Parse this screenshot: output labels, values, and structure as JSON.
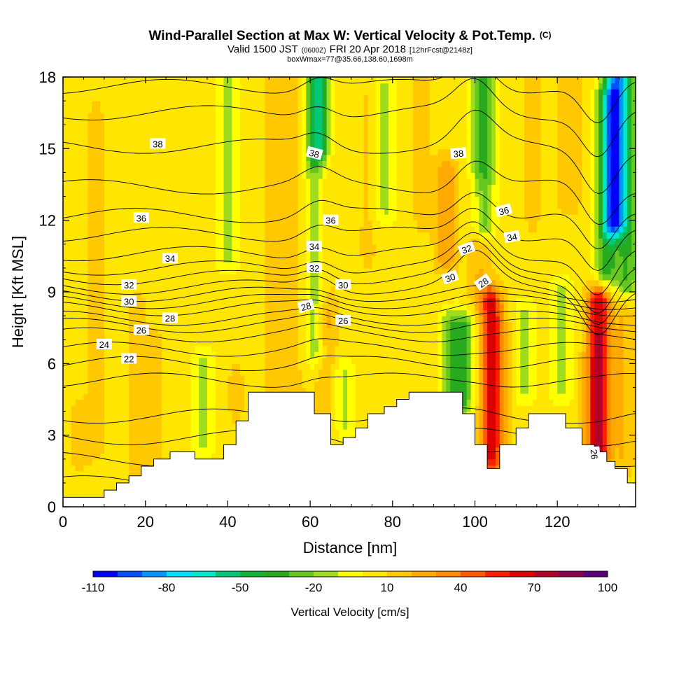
{
  "chart_data": {
    "type": "heatmap",
    "title": "Wind-Parallel Section at Max W: Vertical Velocity & Pot.Temp.",
    "title_mark": "(C)",
    "subtitle": {
      "valid": "Valid 1500 JST",
      "utc": "(0600Z)",
      "date": "FRI 20 Apr 2018",
      "fcst": "[12hrFcst@2148z]",
      "box": "boxWmax=77@35.66,138.60,1698m"
    },
    "xlabel": "Distance [nm]",
    "ylabel": "Height [Kft MSL]",
    "xlim": [
      0,
      139
    ],
    "ylim": [
      0,
      18
    ],
    "x_ticks": [
      "0",
      "20",
      "40",
      "60",
      "80",
      "100",
      "120"
    ],
    "x_tick_values": [
      0,
      20,
      40,
      60,
      80,
      100,
      120
    ],
    "y_ticks": [
      "0",
      "3",
      "6",
      "9",
      "12",
      "15",
      "18"
    ],
    "y_tick_values": [
      0,
      3,
      6,
      9,
      12,
      15,
      18
    ],
    "colorbar": {
      "label": "Vertical Velocity [cm/s]",
      "tick_labels": [
        "-110",
        "-80",
        "-50",
        "-20",
        "10",
        "40",
        "70",
        "100"
      ],
      "colors": [
        "#0000ff",
        "#0050ff",
        "#0096ff",
        "#00dcff",
        "#00e6c8",
        "#00c878",
        "#14b43c",
        "#28aa1e",
        "#64c81e",
        "#a0dc1e",
        "#ffff00",
        "#ffe600",
        "#ffc800",
        "#ffaa00",
        "#ff8c00",
        "#ff5a00",
        "#ff1e00",
        "#dc0000",
        "#b40028",
        "#8c0050",
        "#5a0078"
      ]
    },
    "colors": {
      "background": "#ffff00",
      "terrain": "#ffffff",
      "contour": "#000000"
    },
    "velocity_field": {
      "background_value": 5,
      "features": [
        {
          "x": 4,
          "ymin": 2.0,
          "ymax": 4.0,
          "value": 12
        },
        {
          "x": 8,
          "ymin": 2.5,
          "ymax": 16.5,
          "value": 12
        },
        {
          "x": 18,
          "ymin": 1.5,
          "ymax": 8.5,
          "value": 12
        },
        {
          "x": 22,
          "ymin": 1.5,
          "ymax": 7.0,
          "value": 12
        },
        {
          "x": 34,
          "ymin": 2.8,
          "ymax": 6.0,
          "value": -12
        },
        {
          "x": 40,
          "ymin": 10.5,
          "ymax": 18.0,
          "value": -12
        },
        {
          "x": 42,
          "ymin": 4.0,
          "ymax": 5.5,
          "value": 12
        },
        {
          "x": 52,
          "ymin": 5.0,
          "ymax": 18.0,
          "value": 20
        },
        {
          "x": 57,
          "ymin": 5.0,
          "ymax": 18.0,
          "value": 12
        },
        {
          "x": 61,
          "ymin": 6.5,
          "ymax": 18.0,
          "value": -18
        },
        {
          "x": 62,
          "ymin": 15.0,
          "ymax": 18.0,
          "value": -38
        },
        {
          "x": 64,
          "ymin": 8.0,
          "ymax": 14.0,
          "value": 12
        },
        {
          "x": 64,
          "ymin": 3.5,
          "ymax": 8.0,
          "value": 20
        },
        {
          "x": 68,
          "ymin": 3.5,
          "ymax": 5.5,
          "value": -12
        },
        {
          "x": 74,
          "ymin": 10.5,
          "ymax": 17.0,
          "value": 12
        },
        {
          "x": 78,
          "ymin": 12.5,
          "ymax": 17.5,
          "value": -12
        },
        {
          "x": 87,
          "ymin": 12.0,
          "ymax": 18.0,
          "value": 12
        },
        {
          "x": 94,
          "ymin": 5.0,
          "ymax": 7.5,
          "value": -20
        },
        {
          "x": 97,
          "ymin": 4.5,
          "ymax": 7.5,
          "value": -30
        },
        {
          "x": 93,
          "ymin": 10.5,
          "ymax": 14.0,
          "value": 28
        },
        {
          "x": 101,
          "ymin": 9.0,
          "ymax": 13.0,
          "value": 20
        },
        {
          "x": 102,
          "ymin": 12.0,
          "ymax": 18.0,
          "value": -35
        },
        {
          "x": 104,
          "ymin": 2.0,
          "ymax": 8.5,
          "value": 62
        },
        {
          "x": 107,
          "ymin": 3.0,
          "ymax": 7.5,
          "value": 12
        },
        {
          "x": 112,
          "ymin": 5.0,
          "ymax": 8.0,
          "value": -12
        },
        {
          "x": 114,
          "ymin": 12.0,
          "ymax": 18.0,
          "value": 12
        },
        {
          "x": 121,
          "ymin": 5.0,
          "ymax": 9.0,
          "value": -12
        },
        {
          "x": 123,
          "ymin": 13.0,
          "ymax": 18.0,
          "value": 20
        },
        {
          "x": 128,
          "ymin": 2.5,
          "ymax": 6.0,
          "value": 12
        },
        {
          "x": 130,
          "ymin": 2.5,
          "ymax": 8.5,
          "value": 72
        },
        {
          "x": 132,
          "ymin": 10.0,
          "ymax": 17.0,
          "value": -35
        },
        {
          "x": 134,
          "ymin": 12.0,
          "ymax": 18.0,
          "value": -75
        },
        {
          "x": 137,
          "ymin": 9.5,
          "ymax": 18.0,
          "value": -30
        },
        {
          "x": 136,
          "ymin": 2.0,
          "ymax": 8.0,
          "value": 20
        }
      ]
    },
    "terrain": [
      [
        0,
        0.4
      ],
      [
        10,
        0.4
      ],
      [
        10,
        0.7
      ],
      [
        13,
        0.7
      ],
      [
        13,
        1.0
      ],
      [
        16,
        1.0
      ],
      [
        16,
        1.3
      ],
      [
        19,
        1.3
      ],
      [
        19,
        1.7
      ],
      [
        22,
        1.7
      ],
      [
        22,
        2.0
      ],
      [
        26,
        2.0
      ],
      [
        26,
        2.3
      ],
      [
        32,
        2.3
      ],
      [
        32,
        2.0
      ],
      [
        39,
        2.0
      ],
      [
        39,
        2.6
      ],
      [
        42,
        2.6
      ],
      [
        42,
        3.6
      ],
      [
        45,
        3.6
      ],
      [
        45,
        4.8
      ],
      [
        61,
        4.8
      ],
      [
        61,
        3.9
      ],
      [
        65,
        3.9
      ],
      [
        65,
        2.6
      ],
      [
        68,
        2.6
      ],
      [
        68,
        2.9
      ],
      [
        71,
        2.9
      ],
      [
        71,
        3.3
      ],
      [
        74,
        3.3
      ],
      [
        74,
        3.9
      ],
      [
        78,
        3.9
      ],
      [
        78,
        4.2
      ],
      [
        81,
        4.2
      ],
      [
        81,
        4.5
      ],
      [
        84,
        4.5
      ],
      [
        84,
        4.8
      ],
      [
        97,
        4.8
      ],
      [
        97,
        3.9
      ],
      [
        100,
        3.9
      ],
      [
        100,
        2.6
      ],
      [
        103,
        2.6
      ],
      [
        103,
        1.6
      ],
      [
        106,
        1.6
      ],
      [
        106,
        2.6
      ],
      [
        110,
        2.6
      ],
      [
        110,
        3.3
      ],
      [
        113,
        3.3
      ],
      [
        113,
        3.9
      ],
      [
        122,
        3.9
      ],
      [
        122,
        3.3
      ],
      [
        126,
        3.3
      ],
      [
        126,
        2.6
      ],
      [
        129,
        2.6
      ],
      [
        129,
        2.3
      ],
      [
        132,
        2.3
      ],
      [
        132,
        1.9
      ],
      [
        134,
        1.9
      ],
      [
        134,
        1.6
      ],
      [
        137,
        1.6
      ],
      [
        137,
        1.0
      ],
      [
        139,
        1.0
      ]
    ],
    "theta_levels": [
      18,
      19,
      20,
      21,
      22,
      23,
      24,
      25,
      26,
      27,
      28,
      29,
      30,
      31,
      32,
      33,
      34,
      35,
      36,
      37,
      38,
      39,
      40
    ],
    "theta_base_heights": [
      1.0,
      2.0,
      2.9,
      3.8,
      5.3,
      6.0,
      6.6,
      7.2,
      7.6,
      7.9,
      8.3,
      8.6,
      8.9,
      9.2,
      9.6,
      10.0,
      10.6,
      11.4,
      12.2,
      13.4,
      15.1,
      16.5,
      17.6
    ],
    "contour_labels": [
      {
        "text": "38",
        "x": 23,
        "y": 15.2,
        "angle": 0
      },
      {
        "text": "38",
        "x": 61,
        "y": 14.8,
        "angle": 15
      },
      {
        "text": "38",
        "x": 96,
        "y": 14.8,
        "angle": -5
      },
      {
        "text": "36",
        "x": 19,
        "y": 12.1,
        "angle": 0
      },
      {
        "text": "36",
        "x": 65,
        "y": 12.0,
        "angle": 0
      },
      {
        "text": "36",
        "x": 107,
        "y": 12.4,
        "angle": -15
      },
      {
        "text": "34",
        "x": 26,
        "y": 10.4,
        "angle": 0
      },
      {
        "text": "34",
        "x": 61,
        "y": 10.9,
        "angle": 0
      },
      {
        "text": "34",
        "x": 109,
        "y": 11.3,
        "angle": -10
      },
      {
        "text": "32",
        "x": 16,
        "y": 9.3,
        "angle": 0
      },
      {
        "text": "32",
        "x": 61,
        "y": 10.0,
        "angle": 0
      },
      {
        "text": "32",
        "x": 98,
        "y": 10.8,
        "angle": -20
      },
      {
        "text": "30",
        "x": 16,
        "y": 8.6,
        "angle": 0
      },
      {
        "text": "30",
        "x": 68,
        "y": 9.3,
        "angle": 0
      },
      {
        "text": "30",
        "x": 94,
        "y": 9.6,
        "angle": -20
      },
      {
        "text": "28",
        "x": 26,
        "y": 7.9,
        "angle": 0
      },
      {
        "text": "28",
        "x": 59,
        "y": 8.4,
        "angle": -15
      },
      {
        "text": "28",
        "x": 102,
        "y": 9.4,
        "angle": -35
      },
      {
        "text": "26",
        "x": 19,
        "y": 7.4,
        "angle": 0
      },
      {
        "text": "26",
        "x": 68,
        "y": 7.8,
        "angle": 0
      },
      {
        "text": "26",
        "x": 129,
        "y": 2.2,
        "angle": 85
      },
      {
        "text": "24",
        "x": 10,
        "y": 6.8,
        "angle": 0
      },
      {
        "text": "22",
        "x": 16,
        "y": 6.2,
        "angle": 0
      }
    ]
  }
}
